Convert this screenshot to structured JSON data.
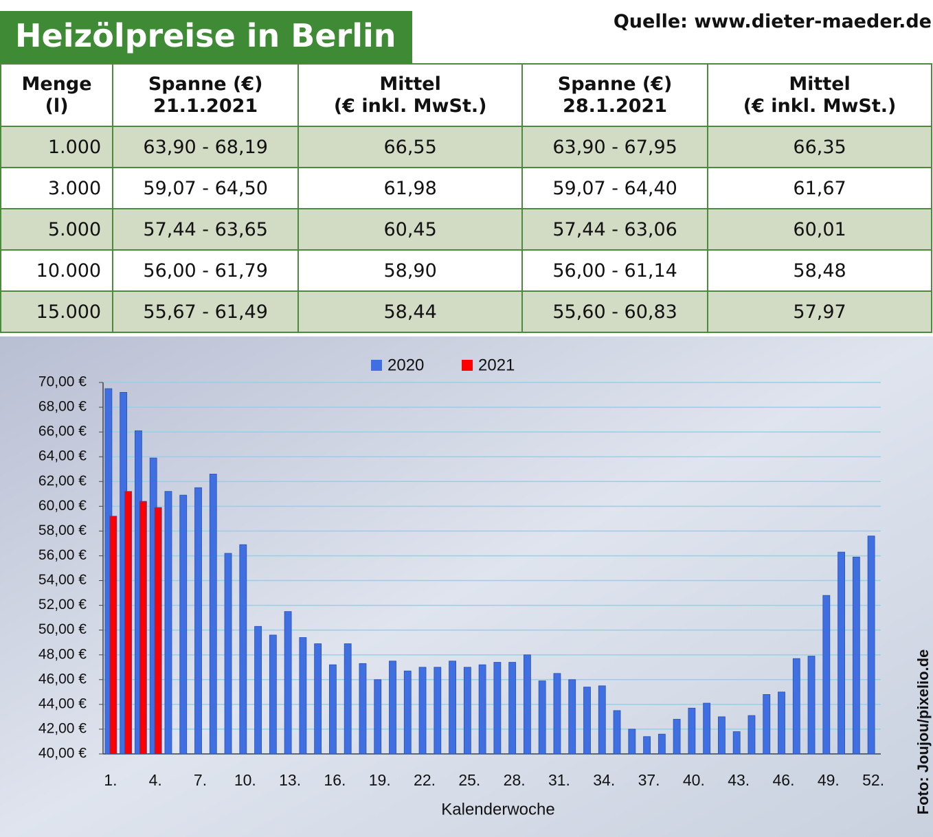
{
  "header": {
    "title": "Heizölpreise in Berlin",
    "source": "Quelle: www.dieter-maeder.de"
  },
  "table": {
    "columns": [
      [
        "Menge",
        "(l)"
      ],
      [
        "Spanne (€)",
        "21.1.2021"
      ],
      [
        "Mittel",
        "(€ inkl. MwSt.)"
      ],
      [
        "Spanne (€)",
        "28.1.2021"
      ],
      [
        "Mittel",
        "(€ inkl. MwSt.)"
      ]
    ],
    "rows": [
      [
        "1.000",
        "63,90 - 68,19",
        "66,55",
        "63,90 - 67,95",
        "66,35"
      ],
      [
        "3.000",
        "59,07 - 64,50",
        "61,98",
        "59,07 - 64,40",
        "61,67"
      ],
      [
        "5.000",
        "57,44 - 63,65",
        "60,45",
        "57,44 - 63,06",
        "60,01"
      ],
      [
        "10.000",
        "56,00 - 61,79",
        "58,90",
        "56,00 - 61,14",
        "58,48"
      ],
      [
        "15.000",
        "55,67 - 61,49",
        "58,44",
        "55,60 - 60,83",
        "57,97"
      ]
    ]
  },
  "chart_data": {
    "type": "bar",
    "x_label": "Kalenderwoche",
    "categories": [
      "1.",
      null,
      null,
      "4.",
      null,
      null,
      "7.",
      null,
      null,
      "10.",
      null,
      null,
      "13.",
      null,
      null,
      "16.",
      null,
      null,
      "19.",
      null,
      null,
      "22.",
      null,
      null,
      "25.",
      null,
      null,
      "28.",
      null,
      null,
      "31.",
      null,
      null,
      "34.",
      null,
      null,
      "37.",
      null,
      null,
      "40.",
      null,
      null,
      "43.",
      null,
      null,
      "46.",
      null,
      null,
      "49.",
      null,
      null,
      "52."
    ],
    "series": [
      {
        "name": "2020",
        "color": "#3f6fe0",
        "values": [
          69.5,
          69.2,
          66.1,
          63.9,
          61.2,
          60.9,
          61.5,
          62.6,
          56.2,
          56.9,
          50.3,
          49.6,
          51.5,
          49.4,
          48.9,
          47.2,
          48.9,
          47.3,
          46.0,
          47.5,
          46.7,
          47.0,
          47.0,
          47.5,
          47.0,
          47.2,
          47.4,
          47.4,
          48.0,
          45.9,
          46.5,
          46.0,
          45.4,
          45.5,
          43.5,
          42.0,
          41.4,
          41.6,
          42.8,
          43.7,
          44.1,
          43.0,
          41.8,
          43.1,
          44.8,
          45.0,
          47.7,
          47.9,
          52.8,
          56.3,
          55.9,
          57.6
        ]
      },
      {
        "name": "2021",
        "color": "#ff0000",
        "values": [
          59.2,
          61.2,
          60.4,
          59.9,
          null,
          null,
          null,
          null,
          null,
          null,
          null,
          null,
          null,
          null,
          null,
          null,
          null,
          null,
          null,
          null,
          null,
          null,
          null,
          null,
          null,
          null,
          null,
          null,
          null,
          null,
          null,
          null,
          null,
          null,
          null,
          null,
          null,
          null,
          null,
          null,
          null,
          null,
          null,
          null,
          null,
          null,
          null,
          null,
          null,
          null,
          null,
          null
        ]
      }
    ],
    "ylim": [
      40,
      70
    ],
    "yticks": [
      {
        "value": 40,
        "label": "40,00 €"
      },
      {
        "value": 42,
        "label": "42,00 €"
      },
      {
        "value": 44,
        "label": "44,00 €"
      },
      {
        "value": 46,
        "label": "46,00 €"
      },
      {
        "value": 48,
        "label": "48,00 €"
      },
      {
        "value": 50,
        "label": "50,00 €"
      },
      {
        "value": 52,
        "label": "52,00 €"
      },
      {
        "value": 54,
        "label": "54,00 €"
      },
      {
        "value": 56,
        "label": "56,00 €"
      },
      {
        "value": 58,
        "label": "58,00 €"
      },
      {
        "value": 60,
        "label": "60,00 €"
      },
      {
        "value": 62,
        "label": "62,00 €"
      },
      {
        "value": 64,
        "label": "64,00 €"
      },
      {
        "value": 66,
        "label": "66,00 €"
      },
      {
        "value": 68,
        "label": "68,00 €"
      },
      {
        "value": 70,
        "label": "70,00 €"
      }
    ],
    "grid": true,
    "legend": "top"
  },
  "credit": "Foto: Joujou/pixelio.de"
}
